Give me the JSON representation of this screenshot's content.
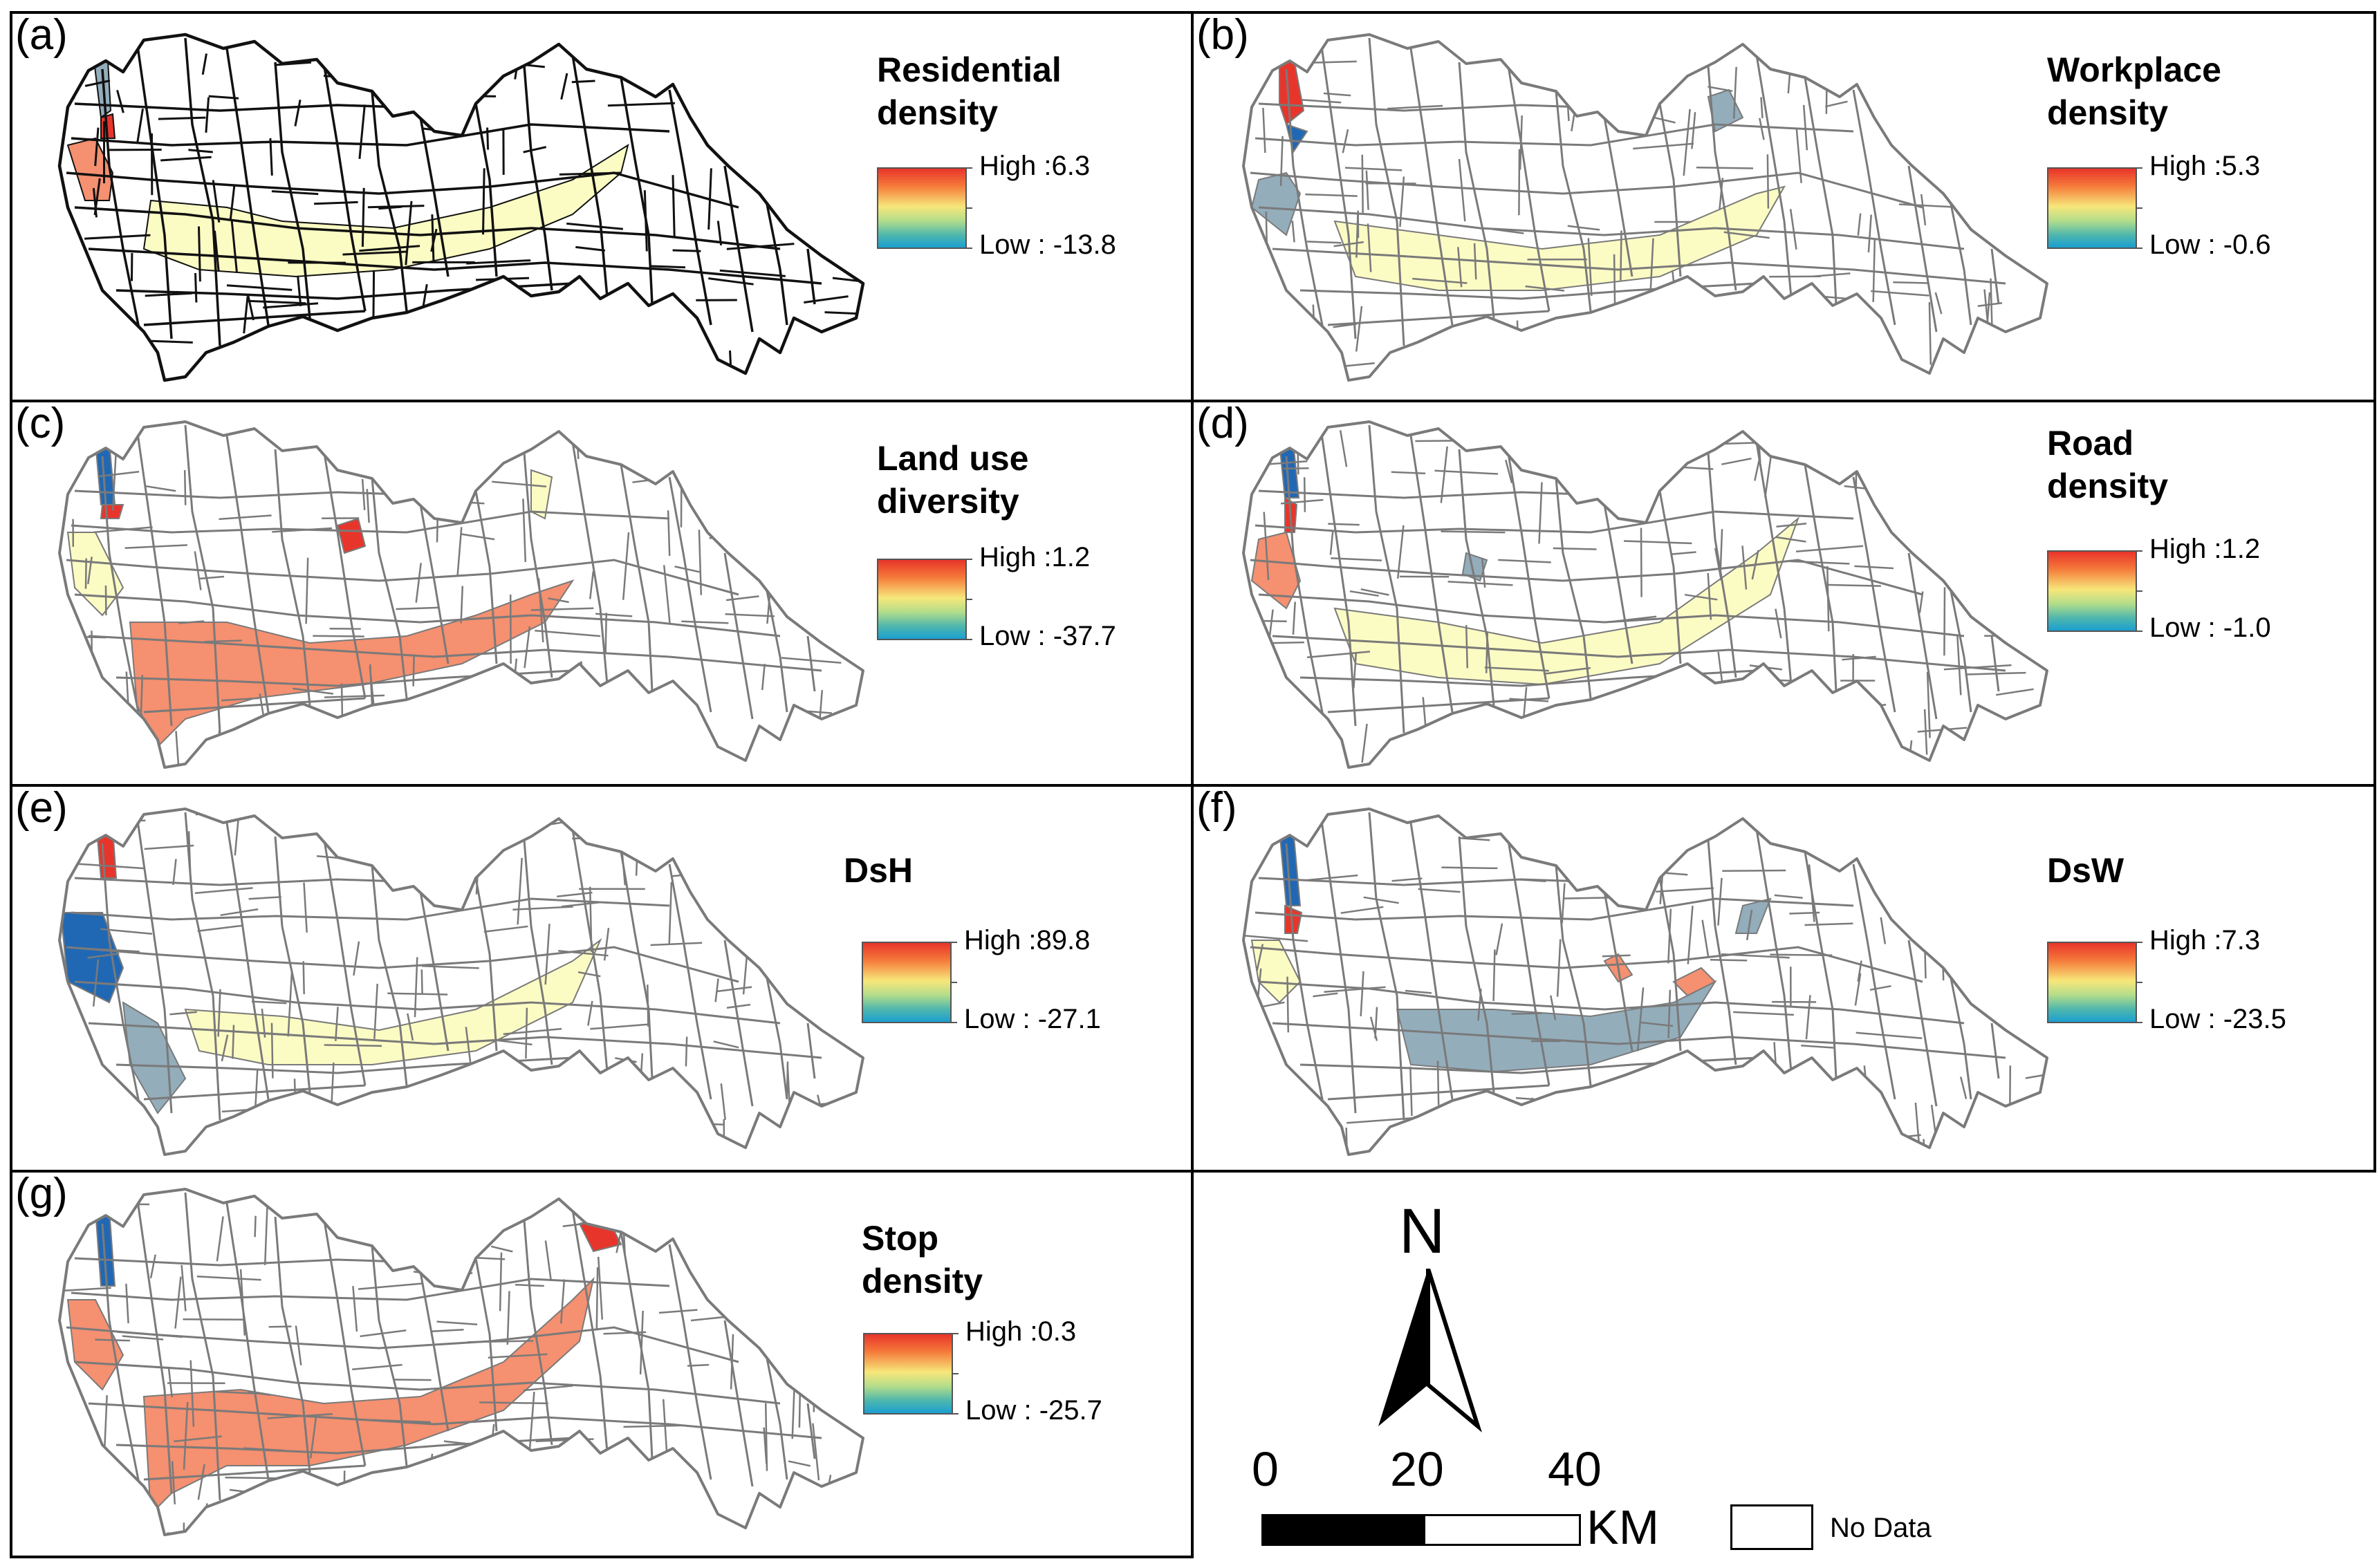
{
  "colors": {
    "outline": "#7a7a7a",
    "outline_dark": "#111111",
    "no_data_fill": "#ffffff",
    "pale_yellow": "#fbfbc4",
    "orange": "#f59070",
    "red": "#e8352b",
    "steel_blue": "#93adbb",
    "dark_blue": "#2168b4"
  },
  "panels": [
    {
      "id": "a",
      "label": "(a)",
      "title_lines": [
        "Residential",
        "density"
      ],
      "legend_high": "High :6.3",
      "legend_low": "Low : -13.8",
      "dark_lines": true
    },
    {
      "id": "b",
      "label": "(b)",
      "title_lines": [
        "Workplace",
        "density"
      ],
      "legend_high": "High :5.3",
      "legend_low": "Low : -0.6",
      "dark_lines": false
    },
    {
      "id": "c",
      "label": "(c)",
      "title_lines": [
        "Land use",
        "diversity"
      ],
      "legend_high": "High :1.2",
      "legend_low": "Low : -37.7",
      "dark_lines": false
    },
    {
      "id": "d",
      "label": "(d)",
      "title_lines": [
        "Road",
        "density"
      ],
      "legend_high": "High :1.2",
      "legend_low": "Low : -1.0",
      "dark_lines": false
    },
    {
      "id": "e",
      "label": "(e)",
      "title_lines": [
        "DsH"
      ],
      "legend_high": "High :89.8",
      "legend_low": "Low : -27.1",
      "dark_lines": false
    },
    {
      "id": "f",
      "label": "(f)",
      "title_lines": [
        "DsW"
      ],
      "legend_high": "High :7.3",
      "legend_low": "Low : -23.5",
      "dark_lines": false
    },
    {
      "id": "g",
      "label": "(g)",
      "title_lines": [
        "Stop",
        "density"
      ],
      "legend_high": "High :0.3",
      "legend_low": "Low : -25.7",
      "dark_lines": false
    }
  ],
  "north_arrow": {
    "label": "N",
    "icon": "north-arrow-icon"
  },
  "scale_bar": {
    "ticks": [
      "0",
      "20",
      "40"
    ],
    "unit": "KM"
  },
  "no_data": {
    "label": "No Data"
  }
}
